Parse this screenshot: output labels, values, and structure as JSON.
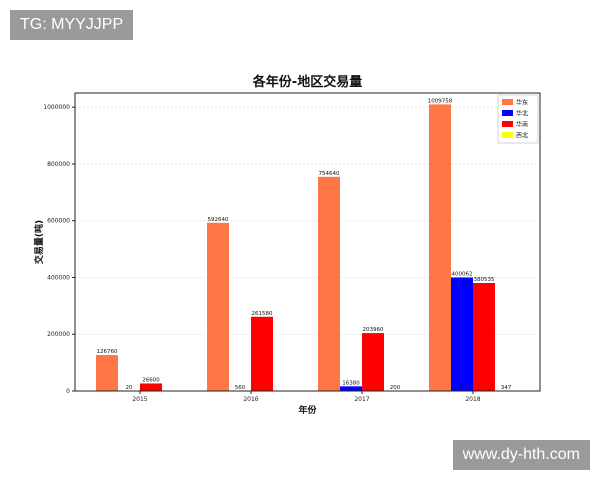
{
  "watermarks": {
    "top": "TG: MYYJJPP",
    "bottom": "www.dy-hth.com"
  },
  "chart_data": {
    "type": "bar",
    "title": "各年份-地区交易量",
    "xlabel": "年份",
    "ylabel": "交易量(吨)",
    "categories": [
      "2015",
      "2016",
      "2017",
      "2018"
    ],
    "ylim": [
      0,
      1050000
    ],
    "yticks": [
      0,
      200000,
      400000,
      600000,
      800000,
      1000000
    ],
    "grid": true,
    "legend_position": "top-right",
    "series": [
      {
        "name": "华东",
        "color": "#ff7744",
        "values": [
          126760,
          592640,
          754640,
          1009758
        ]
      },
      {
        "name": "华北",
        "color": "#0000ff",
        "values": [
          20,
          560,
          16380,
          400062
        ]
      },
      {
        "name": "华南",
        "color": "#ff0000",
        "values": [
          26600,
          261580,
          203960,
          380535
        ]
      },
      {
        "name": "西北",
        "color": "#ffff00",
        "values": [
          0,
          0,
          200,
          347
        ]
      }
    ],
    "data_labels": [
      [
        "126760",
        "592640",
        "754640",
        "1009758"
      ],
      [
        "20",
        "560",
        "16380",
        "400062"
      ],
      [
        "26600",
        "261580",
        "203960",
        "380535"
      ],
      [
        "",
        "",
        "200",
        "347"
      ]
    ]
  }
}
